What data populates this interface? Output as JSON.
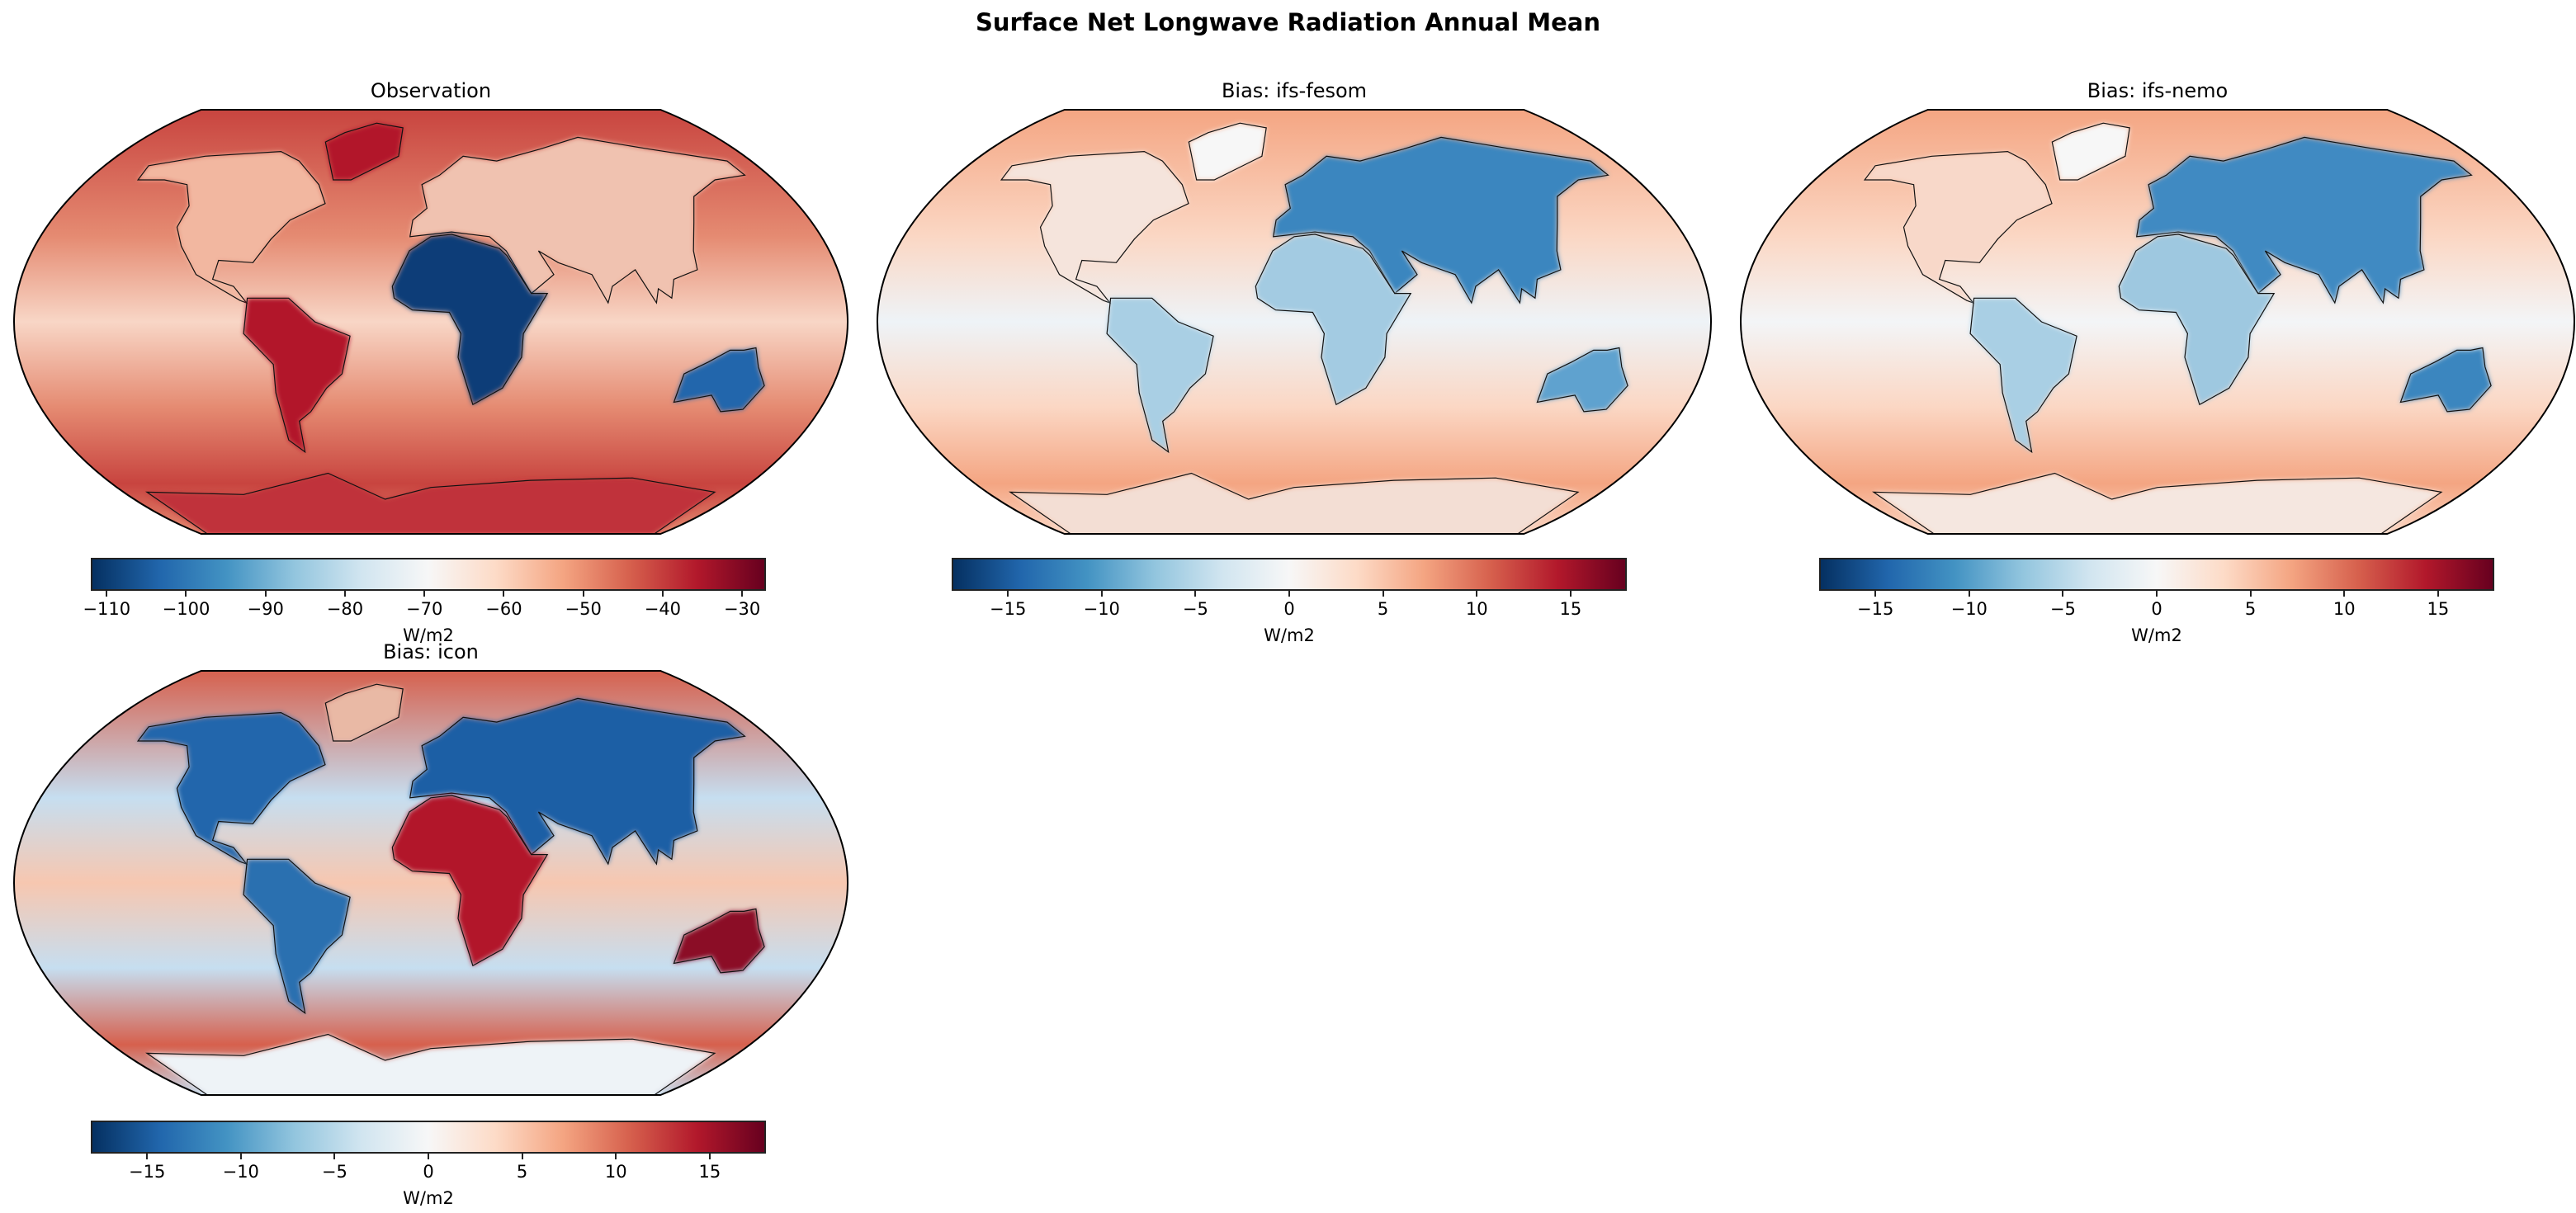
{
  "title": "Surface Net Longwave Radiation Annual Mean",
  "chart_data": [
    {
      "type": "heatmap",
      "title": "Observation",
      "projection": "robinson",
      "colormap": "RdBu_r",
      "colorbar": {
        "label": "W/m2",
        "range": [
          -112,
          -27
        ],
        "ticks": [
          -110,
          -100,
          -90,
          -80,
          -70,
          -60,
          -50,
          -40,
          -30
        ],
        "tick_labels": [
          "−110",
          "−100",
          "−90",
          "−80",
          "−70",
          "−60",
          "−50",
          "−40",
          "−30"
        ]
      },
      "colors": {
        "ocean_high": "#c8443f",
        "ocean_mid": "#e58b72",
        "ocean_eq": "#f8d6c6",
        "land": {
          "na": "#f2b7a0",
          "sa": "#b2182b",
          "greenland": "#b2182b",
          "eurasia": "#f0c2b0",
          "africa": "#0b3c78",
          "australia": "#2166ac",
          "antarctica": "#c0303a"
        }
      }
    },
    {
      "type": "heatmap",
      "title": "Bias: ifs-fesom",
      "projection": "robinson",
      "colormap": "RdBu_r",
      "colorbar": {
        "label": "W/m2",
        "range": [
          -18,
          18
        ],
        "ticks": [
          -15,
          -10,
          -5,
          0,
          5,
          10,
          15
        ],
        "tick_labels": [
          "−15",
          "−10",
          "−5",
          "0",
          "5",
          "10",
          "15"
        ]
      },
      "colors": {
        "ocean_high": "#f4a582",
        "ocean_mid": "#fbd7c4",
        "ocean_eq": "#eef3f7",
        "land": {
          "na": "#f5e4dc",
          "sa": "#a9cfe4",
          "greenland": "#f7f7f7",
          "eurasia": "#3a86bf",
          "africa": "#a3cbe2",
          "australia": "#5fa2cf",
          "antarctica": "#f3ded4"
        }
      }
    },
    {
      "type": "heatmap",
      "title": "Bias: ifs-nemo",
      "projection": "robinson",
      "colormap": "RdBu_r",
      "colorbar": {
        "label": "W/m2",
        "range": [
          -18,
          18
        ],
        "ticks": [
          -15,
          -10,
          -5,
          0,
          5,
          10,
          15
        ],
        "tick_labels": [
          "−15",
          "−10",
          "−5",
          "0",
          "5",
          "10",
          "15"
        ]
      },
      "colors": {
        "ocean_high": "#f4a582",
        "ocean_mid": "#fbd7c4",
        "ocean_eq": "#f3f5f7",
        "land": {
          "na": "#f8d8c9",
          "sa": "#a9cfe4",
          "greenland": "#f7f7f7",
          "eurasia": "#3f8ac2",
          "africa": "#9ec8e0",
          "australia": "#3a86bf",
          "antarctica": "#f5e7e0"
        }
      }
    },
    {
      "type": "heatmap",
      "title": "Bias: icon",
      "projection": "robinson",
      "colormap": "RdBu_r",
      "colorbar": {
        "label": "W/m2",
        "range": [
          -18,
          18
        ],
        "ticks": [
          -15,
          -10,
          -5,
          0,
          5,
          10,
          15
        ],
        "tick_labels": [
          "−15",
          "−10",
          "−5",
          "0",
          "5",
          "10",
          "15"
        ]
      },
      "colors": {
        "ocean_high": "#d6604d",
        "ocean_mid": "#c6def0",
        "ocean_eq": "#f7c7b0",
        "land": {
          "na": "#2166ac",
          "sa": "#2a6fb0",
          "greenland": "#e9b9a5",
          "eurasia": "#1f5fa5",
          "africa": "#b2182b",
          "australia": "#8b0a26",
          "antarctica": "#eef3f7"
        }
      }
    }
  ]
}
